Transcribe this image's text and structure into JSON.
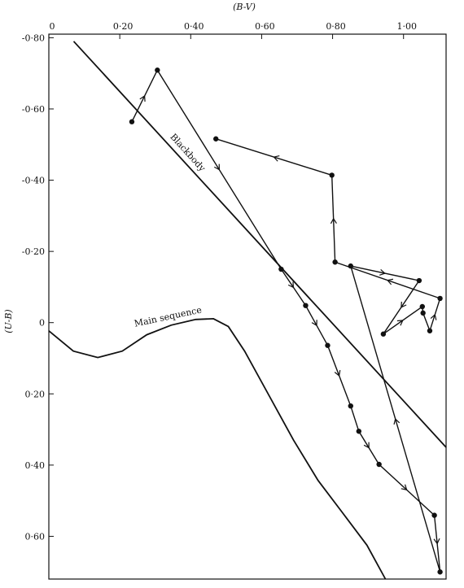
{
  "chart_data": {
    "type": "line",
    "x_label": "(B-V)",
    "y_label": "(U-B)",
    "xlim": [
      0,
      1.12
    ],
    "ylim": [
      -0.81,
      0.72
    ],
    "y_inverted": true,
    "xticks": [
      0,
      {
        "value": 0.2,
        "label": "0·20"
      },
      {
        "value": 0.4,
        "label": "0·40"
      },
      {
        "value": 0.6,
        "label": "0·60"
      },
      {
        "value": 0.8,
        "label": "0·80"
      },
      {
        "value": 1.0,
        "label": "1·00"
      }
    ],
    "yticks": [
      {
        "value": -0.8,
        "label": "-0·80"
      },
      {
        "value": -0.6,
        "label": "-0·60"
      },
      {
        "value": -0.4,
        "label": "-0·40"
      },
      {
        "value": -0.2,
        "label": "-0·20"
      },
      0,
      {
        "value": 0.2,
        "label": "0·20"
      },
      {
        "value": 0.4,
        "label": "0·40"
      },
      {
        "value": 0.6,
        "label": "0·60"
      }
    ],
    "series": [
      {
        "name": "Blackbody",
        "color": "#111111",
        "x": [
          0.07,
          1.12
        ],
        "values": [
          -0.79,
          0.35
        ]
      },
      {
        "name": "Main sequence",
        "color": "#111111",
        "x": [
          0,
          0.069,
          0.138,
          0.207,
          0.276,
          0.345,
          0.414,
          0.464,
          0.506,
          0.552,
          0.621,
          0.69,
          0.759,
          0.828,
          0.897,
          0.949
        ],
        "values": [
          0.023,
          0.08,
          0.098,
          0.08,
          0.034,
          0.007,
          -0.009,
          -0.011,
          0.011,
          0.08,
          0.205,
          0.33,
          0.443,
          0.534,
          0.625,
          0.72
        ]
      },
      {
        "color": "#111111",
        "markers": true,
        "arrows": true,
        "x": [
          0.234,
          0.306,
          0.655,
          0.724,
          0.786,
          0.851,
          0.874,
          0.931,
          1.087,
          1.103,
          0.851,
          1.044,
          0.943,
          1.053,
          1.055,
          1.074,
          1.103,
          0.807,
          0.798,
          0.471
        ],
        "values": [
          -0.564,
          -0.709,
          -0.15,
          -0.048,
          0.064,
          0.234,
          0.305,
          0.398,
          0.541,
          0.7,
          -0.159,
          -0.118,
          0.032,
          -0.045,
          -0.027,
          0.023,
          -0.068,
          -0.17,
          -0.414,
          -0.516
        ]
      }
    ]
  }
}
